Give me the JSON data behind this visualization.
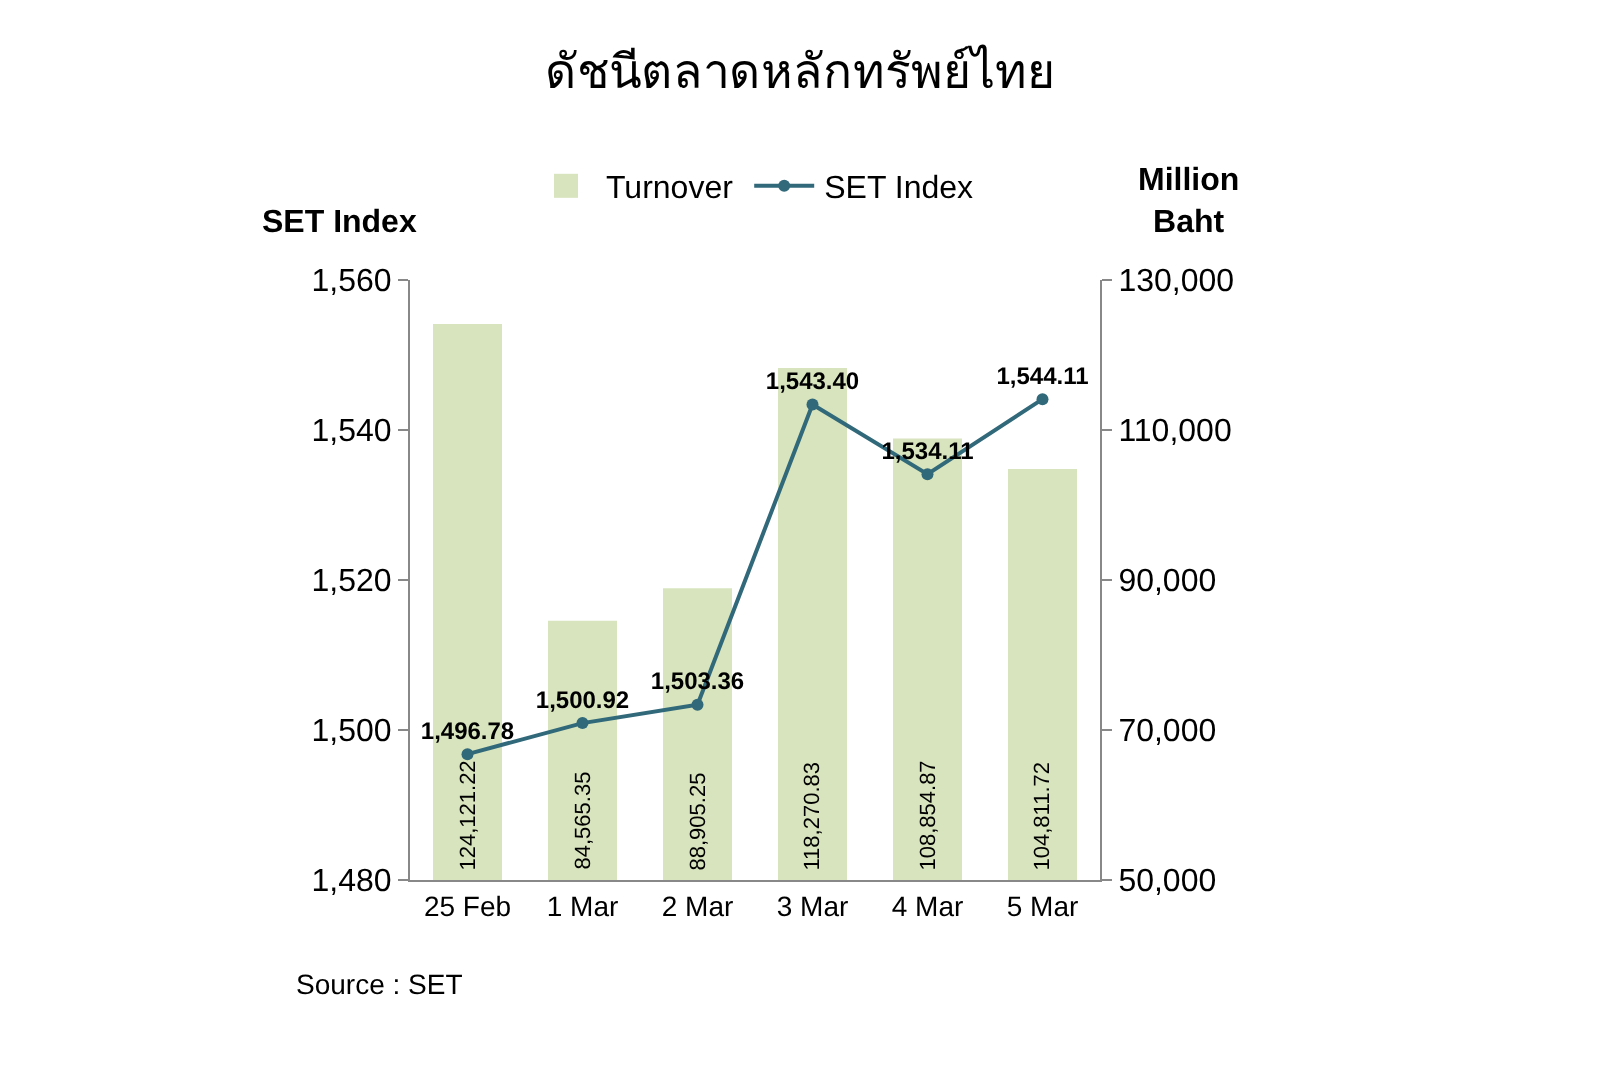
{
  "chart_data": {
    "type": "bar",
    "title": "ดัชนีตลาดหลักทรัพย์ไทย",
    "ylabel": "SET Index",
    "y2label": "Million Baht",
    "categories": [
      "25 Feb",
      "1 Mar",
      "2 Mar",
      "3 Mar",
      "4 Mar",
      "5 Mar"
    ],
    "series": [
      {
        "name": "Turnover",
        "axis": "y2",
        "color": "#d7e4bd",
        "values": [
          124121.22,
          84565.35,
          88905.25,
          118270.83,
          108854.87,
          104811.72
        ],
        "value_labels": [
          "124,121.22",
          "84,565.35",
          "88,905.25",
          "118,270.83",
          "108,854.87",
          "104,811.72"
        ]
      },
      {
        "name": "SET Index",
        "type": "line",
        "axis": "y",
        "color": "#31697a",
        "values": [
          1496.78,
          1500.92,
          1503.36,
          1543.4,
          1534.11,
          1544.11
        ],
        "value_labels": [
          "1,496.78",
          "1,500.92",
          "1,503.36",
          "1,543.40",
          "1,534.11",
          "1,544.11"
        ]
      }
    ],
    "ylim": [
      1480,
      1560
    ],
    "yticks": [
      {
        "value": 1480,
        "label": "1,480"
      },
      {
        "value": 1500,
        "label": "1,500"
      },
      {
        "value": 1520,
        "label": "1,520"
      },
      {
        "value": 1540,
        "label": "1,540"
      },
      {
        "value": 1560,
        "label": "1,560"
      }
    ],
    "y2lim": [
      50000,
      130000
    ],
    "y2ticks": [
      {
        "value": 50000,
        "label": "50,000"
      },
      {
        "value": 70000,
        "label": "70,000"
      },
      {
        "value": 90000,
        "label": "90,000"
      },
      {
        "value": 110000,
        "label": "110,000"
      },
      {
        "value": 130000,
        "label": "130,000"
      }
    ],
    "grid": false,
    "legend": "top",
    "marker": "circle",
    "line_style": "solid",
    "annotations": [
      "Source : SET"
    ]
  }
}
